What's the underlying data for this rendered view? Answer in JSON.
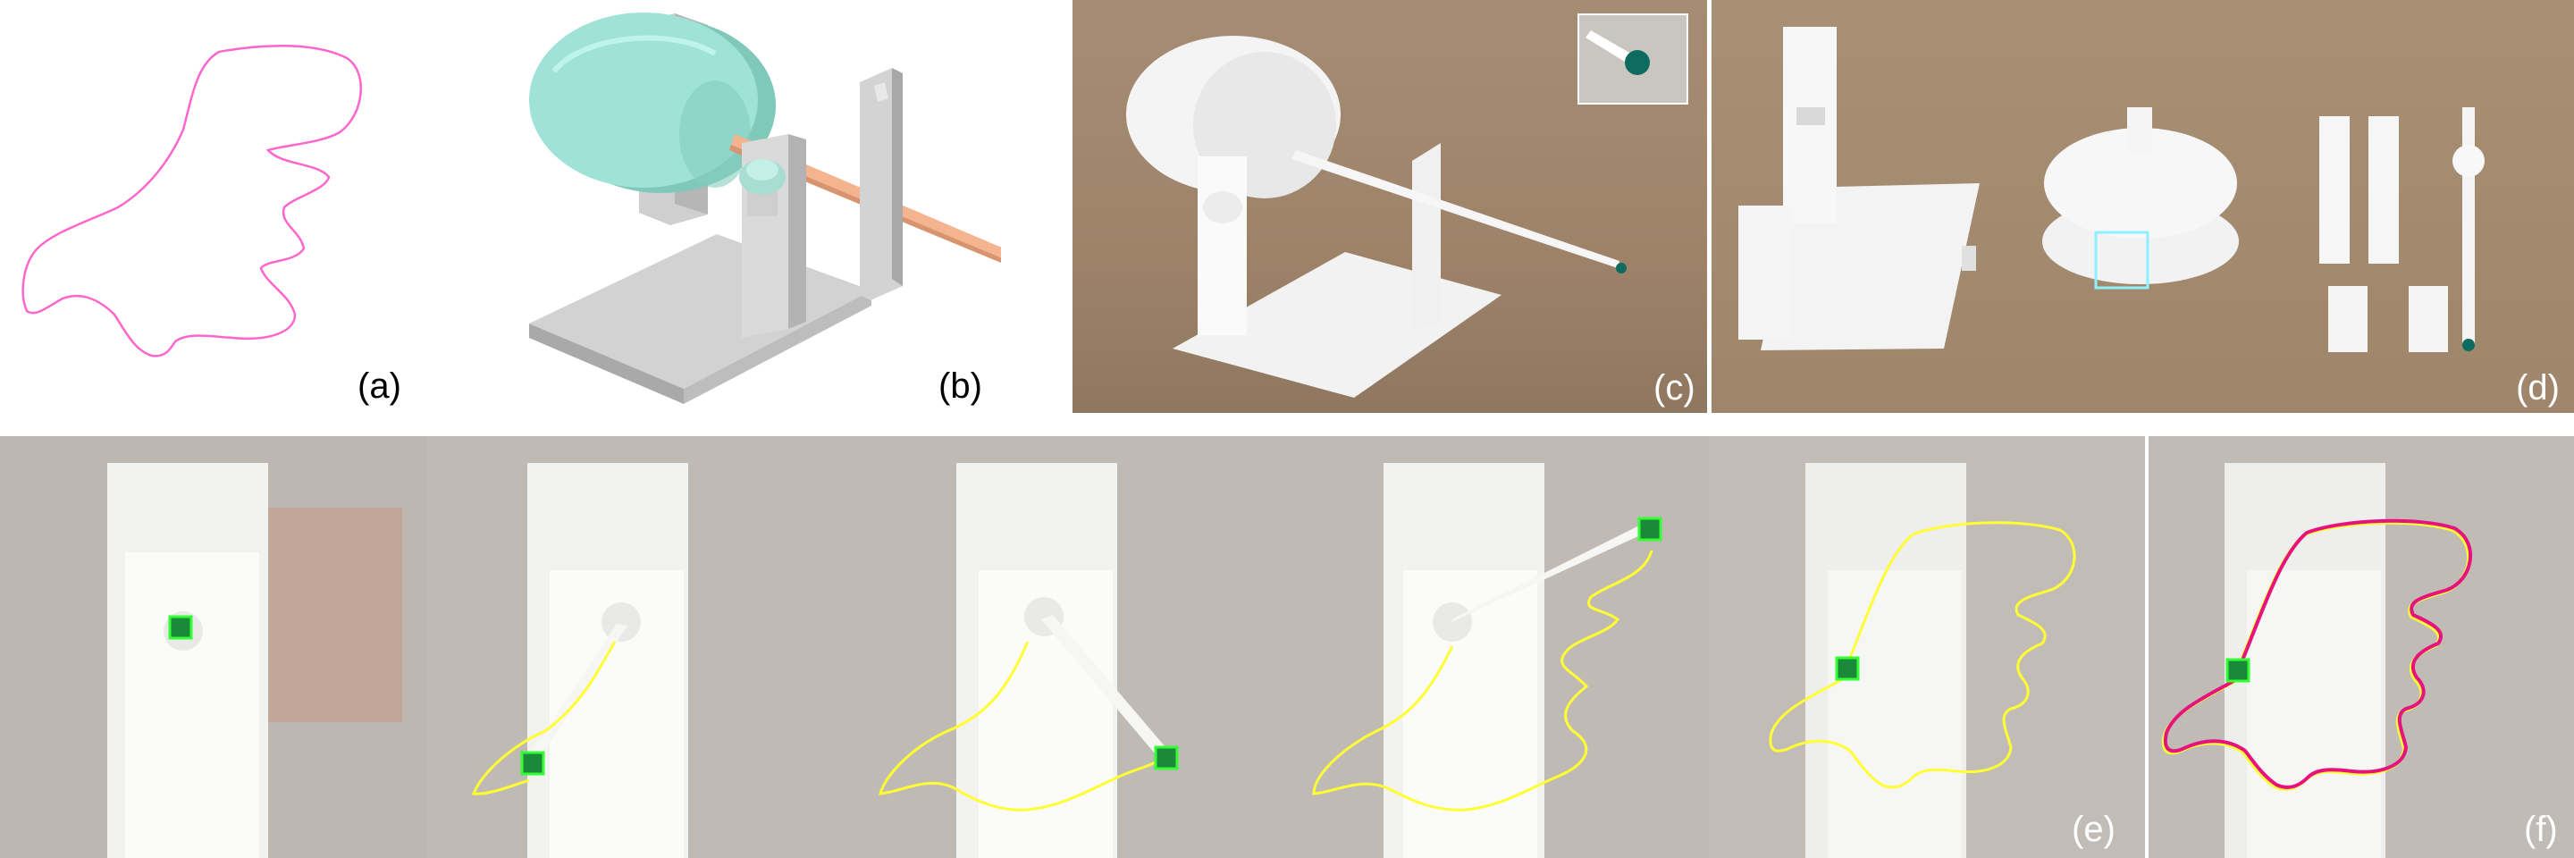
{
  "figure": {
    "labels": {
      "a": "(a)",
      "b": "(b)",
      "c": "(c)",
      "d": "(d)",
      "e": "(e)",
      "f": "(f)"
    },
    "colors": {
      "target_curve": "#ff66cc",
      "traced_curve": "#ffff33",
      "overlay_curve": "#e6127e",
      "pen_tip": "#0d6b60",
      "marker_box": "#33ff33",
      "highlight_box": "#8ff0ff",
      "model_wheel": "#9fe3d6",
      "model_rod": "#f3b48f"
    }
  }
}
